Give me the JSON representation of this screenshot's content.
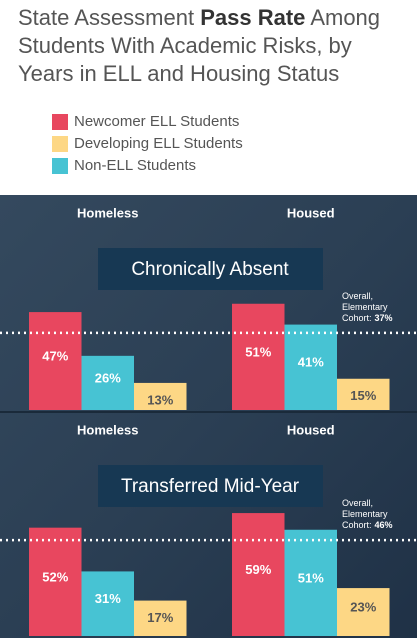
{
  "title_start": "State Assessment",
  "title_bold": "Pass Rate",
  "title_end": "Among Students With Academic Risks, by Years in ELL and Housing Status",
  "legend": [
    {
      "name": "Newcomer ELL Students",
      "color": "#e8475f"
    },
    {
      "name": "Developing ELL Students",
      "color": "#fdd785"
    },
    {
      "name": "Non-ELL Students",
      "color": "#47c3d3"
    }
  ],
  "chart_data": [
    {
      "type": "bar",
      "title": "Chronically Absent",
      "categories": [
        "Homeless",
        "Housed"
      ],
      "ylim": [
        0,
        60
      ],
      "series": [
        {
          "color": "#e8475f",
          "values": [
            47,
            51
          ],
          "value_labels": [
            "47%",
            "51%"
          ]
        },
        {
          "color": "#47c3d3",
          "values": [
            26,
            41
          ],
          "value_labels": [
            "26%",
            "41%"
          ]
        },
        {
          "color": "#fdd785",
          "values": [
            13,
            15
          ],
          "value_labels": [
            "13%",
            "15%"
          ]
        }
      ],
      "reference": {
        "label": "Overall, Elementary Cohort:",
        "value": 37,
        "value_label": "37%"
      }
    },
    {
      "type": "bar",
      "title": "Transferred Mid-Year",
      "categories": [
        "Homeless",
        "Housed"
      ],
      "ylim": [
        0,
        60
      ],
      "series": [
        {
          "color": "#e8475f",
          "values": [
            52,
            59
          ],
          "value_labels": [
            "52%",
            "59%"
          ]
        },
        {
          "color": "#47c3d3",
          "values": [
            31,
            51
          ],
          "value_labels": [
            "31%",
            "51%"
          ]
        },
        {
          "color": "#fdd785",
          "values": [
            17,
            23
          ],
          "value_labels": [
            "17%",
            "23%"
          ]
        }
      ],
      "reference": {
        "label": "Overall, Elementary Cohort:",
        "value": 46,
        "value_label": "46%"
      }
    }
  ]
}
